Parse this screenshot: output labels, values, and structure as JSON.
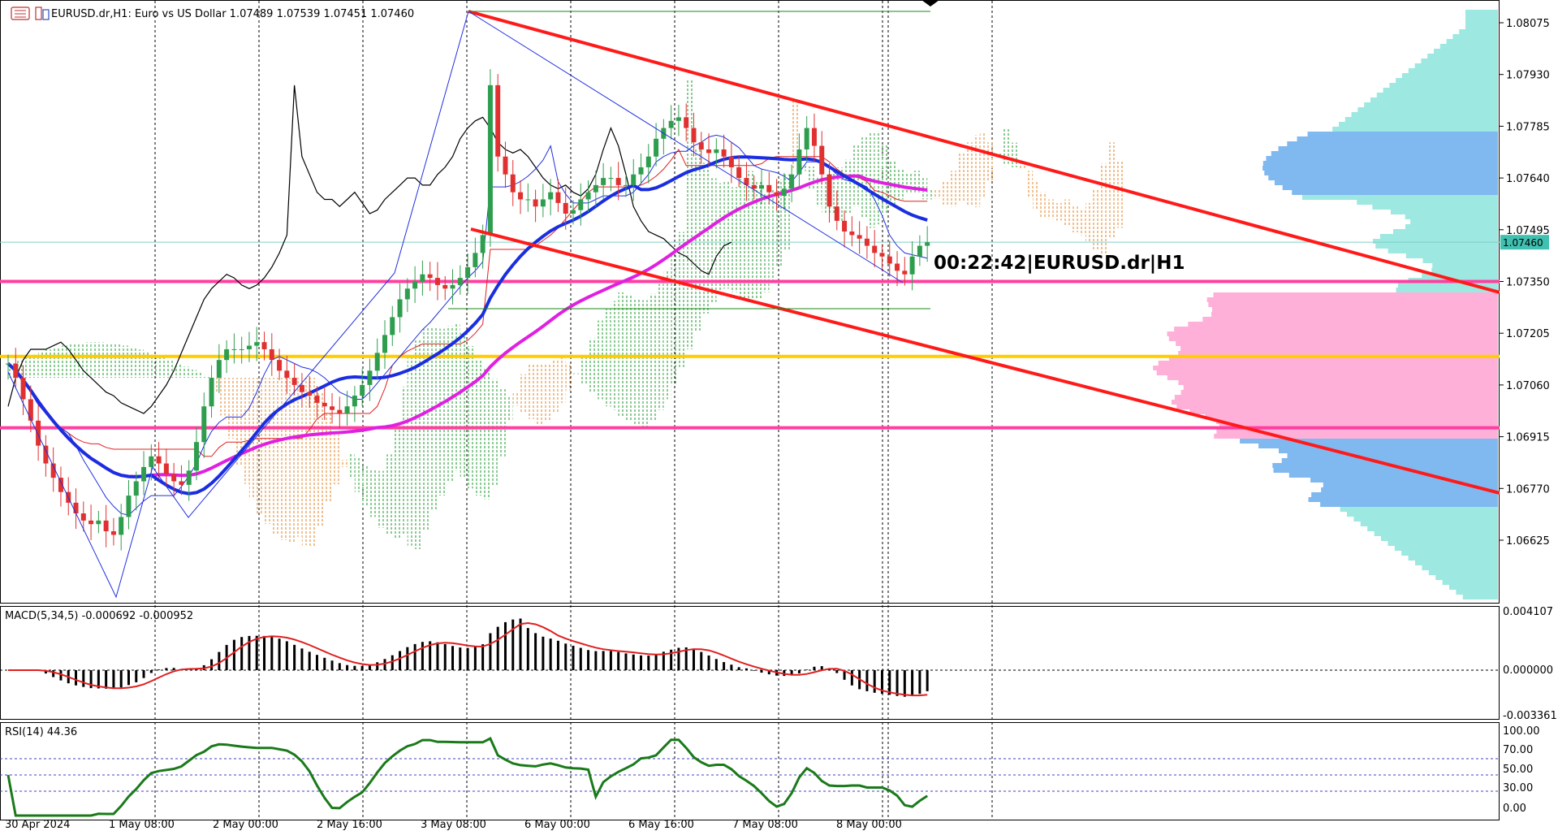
{
  "header": {
    "symbol_line": "EURUSD.dr,H1:  Euro vs US Dollar  1.07489 1.07539 1.07451 1.07460"
  },
  "timer_label": "00:22:42|EURUSD.dr|H1",
  "macd_label": "MACD(5,34,5) -0.000692 -0.000952",
  "rsi_label": "RSI(14) 44.36",
  "colors": {
    "bull": "#2e9e4e",
    "bear": "#e03030",
    "channel": "#ff1a1a",
    "ma_fast": "#1a2ee0",
    "ma_slow": "#e020e0",
    "level_pink": "#ff3fa0",
    "level_yellow": "#ffcc00",
    "kijun": "#e02020",
    "tenkan": "#2030e0",
    "chikou": "#000000",
    "cloud_green": "#1a9a2a",
    "cloud_orange": "#e08020",
    "vp_cyan": "#9de8e0",
    "vp_blue": "#80b8f0",
    "vp_pink": "#ffb0d8",
    "macd_hist": "#000000",
    "macd_signal": "#e02020",
    "rsi_line": "#1a7a1a"
  },
  "chart_data": {
    "type": "candlestick",
    "symbol": "EURUSD.dr",
    "timeframe": "H1",
    "ohlc_last": {
      "open": 1.07489,
      "high": 1.07539,
      "low": 1.07451,
      "close": 1.0746
    },
    "price_axis_ticks": [
      "1.08075",
      "1.07930",
      "1.07785",
      "1.07640",
      "1.07495",
      "1.07350",
      "1.07205",
      "1.07060",
      "1.06915",
      "1.06770",
      "1.06625"
    ],
    "current_price": "1.07460",
    "time_axis_ticks": [
      "30 Apr 2024",
      "1 May 08:00",
      "2 May 00:00",
      "2 May 16:00",
      "3 May 08:00",
      "6 May 00:00",
      "6 May 16:00",
      "7 May 08:00",
      "8 May 00:00"
    ],
    "ylim": [
      1.0651,
      1.0815
    ],
    "horizontal_levels": [
      {
        "price": 1.0735,
        "color": "pink"
      },
      {
        "price": 1.0714,
        "color": "yellow"
      },
      {
        "price": 1.0694,
        "color": "pink"
      }
    ],
    "macd": {
      "params": "5,34,5",
      "main": -0.000692,
      "signal": -0.000952,
      "axis_ticks": [
        "0.004107",
        "0.000000",
        "-0.003361"
      ]
    },
    "rsi": {
      "period": 14,
      "value": 44.36,
      "axis_ticks": [
        "100.00",
        "70.00",
        "50.00",
        "30.00",
        "0.00"
      ],
      "levels": [
        70,
        50,
        30
      ]
    },
    "series": [
      {
        "name": "close",
        "values": [
          1.0712,
          1.0708,
          1.0702,
          1.0696,
          1.0689,
          1.0684,
          1.068,
          1.0676,
          1.0673,
          1.067,
          1.0668,
          1.0667,
          1.0668,
          1.0665,
          1.0664,
          1.0669,
          1.0675,
          1.0679,
          1.0683,
          1.0686,
          1.0684,
          1.0681,
          1.0679,
          1.0678,
          1.0682,
          1.069,
          1.07,
          1.0708,
          1.0713,
          1.0716,
          1.0716,
          1.0716,
          1.0717,
          1.0718,
          1.0716,
          1.0713,
          1.071,
          1.0708,
          1.0706,
          1.0704,
          1.0703,
          1.0701,
          1.07,
          1.0699,
          1.0698,
          1.07,
          1.0703,
          1.0706,
          1.071,
          1.0715,
          1.072,
          1.0725,
          1.073,
          1.0733,
          1.0735,
          1.0737,
          1.0736,
          1.0734,
          1.0733,
          1.0734,
          1.0736,
          1.0739,
          1.0743,
          1.0748,
          1.079,
          1.077,
          1.0765,
          1.076,
          1.0758,
          1.0758,
          1.0756,
          1.0758,
          1.076,
          1.0757,
          1.0754,
          1.0755,
          1.0758,
          1.076,
          1.0762,
          1.0764,
          1.0764,
          1.0762,
          1.0762,
          1.0765,
          1.0767,
          1.077,
          1.0775,
          1.0778,
          1.078,
          1.0781,
          1.0778,
          1.0774,
          1.0772,
          1.0771,
          1.0772,
          1.077,
          1.0767,
          1.0764,
          1.0762,
          1.0761,
          1.0762,
          1.076,
          1.0759,
          1.0761,
          1.0765,
          1.0772,
          1.0778,
          1.0773,
          1.0765,
          1.0756,
          1.0752,
          1.0749,
          1.0748,
          1.0747,
          1.0745,
          1.0743,
          1.0742,
          1.074,
          1.0738,
          1.0737,
          1.0742,
          1.0745,
          1.0746
        ]
      }
    ]
  }
}
